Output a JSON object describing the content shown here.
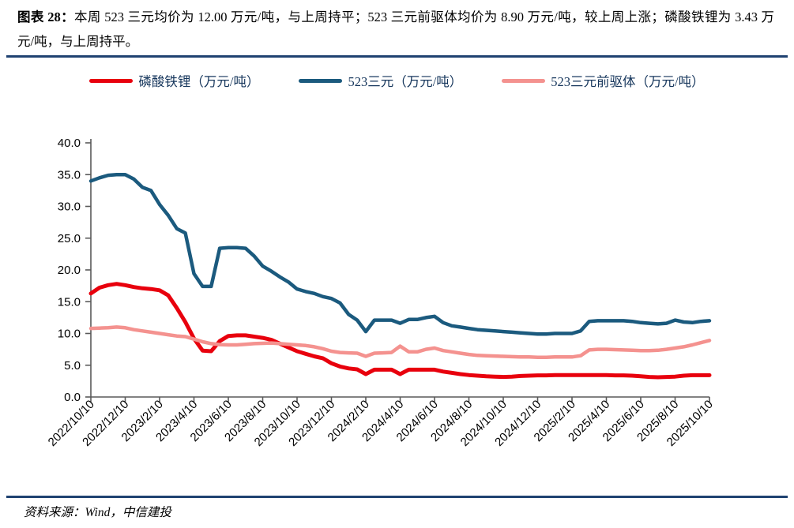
{
  "header": {
    "title_prefix": "图表 28：",
    "title_text": "本周 523 三元均价为 12.00 万元/吨，与上周持平；523 三元前驱体均价为 8.90 万元/吨，较上周上涨；磷酸铁锂为 3.43 万元/吨，与上周持平。"
  },
  "legend": [
    {
      "key": "lfp",
      "label": "磷酸铁锂（万元/吨）",
      "color": "#e8000d"
    },
    {
      "key": "ncm523",
      "label": "523三元（万元/吨）",
      "color": "#1b5a7e"
    },
    {
      "key": "ncm523-precursor",
      "label": "523三元前驱体（万元/吨）",
      "color": "#f4928f"
    }
  ],
  "chart_data": {
    "type": "line",
    "title": "",
    "xlabel": "",
    "ylabel": "",
    "ylim": [
      0,
      40
    ],
    "y_tick_labels": [
      "0.0",
      "5.0",
      "10.0",
      "15.0",
      "20.0",
      "25.0",
      "30.0",
      "35.0",
      "40.0"
    ],
    "grid": false,
    "legend_position": "top",
    "x_start": "2022/10/10",
    "x_end": "2025/10/10",
    "x_sampling": "semi-monthly, 73 evenly spaced points, tick every 4th point",
    "x_tick_labels": [
      "2022/10/10",
      "2022/12/10",
      "2023/2/10",
      "2023/4/10",
      "2023/6/10",
      "2023/8/10",
      "2023/10/10",
      "2023/12/10",
      "2024/2/10",
      "2024/4/10",
      "2024/6/10",
      "2024/8/10",
      "2024/10/10",
      "2024/12/10",
      "2025/2/10",
      "2025/4/10",
      "2025/6/10",
      "2025/8/10",
      "2025/10/10"
    ],
    "series": [
      {
        "key": "lfp",
        "name": "磷酸铁锂（万元/吨）",
        "color": "#e8000d",
        "values": [
          16.3,
          17.2,
          17.6,
          17.8,
          17.6,
          17.3,
          17.1,
          17.0,
          16.8,
          16.0,
          14.0,
          11.8,
          9.2,
          7.3,
          7.2,
          8.8,
          9.6,
          9.7,
          9.7,
          9.5,
          9.3,
          9.0,
          8.4,
          7.8,
          7.2,
          6.8,
          6.4,
          6.1,
          5.3,
          4.8,
          4.5,
          4.35,
          3.6,
          4.3,
          4.3,
          4.3,
          3.6,
          4.3,
          4.3,
          4.3,
          4.3,
          4.0,
          3.8,
          3.6,
          3.45,
          3.35,
          3.25,
          3.2,
          3.15,
          3.2,
          3.3,
          3.35,
          3.4,
          3.4,
          3.45,
          3.45,
          3.45,
          3.45,
          3.45,
          3.45,
          3.45,
          3.4,
          3.4,
          3.35,
          3.25,
          3.15,
          3.1,
          3.15,
          3.2,
          3.35,
          3.43,
          3.43,
          3.43
        ]
      },
      {
        "key": "ncm523",
        "name": "523三元（万元/吨）",
        "color": "#1b5a7e",
        "values": [
          34.0,
          34.5,
          34.9,
          35.0,
          35.0,
          34.3,
          33.0,
          32.5,
          30.3,
          28.6,
          26.5,
          25.8,
          19.4,
          17.4,
          17.4,
          23.4,
          23.5,
          23.5,
          23.4,
          22.2,
          20.6,
          19.8,
          18.9,
          18.1,
          17.0,
          16.6,
          16.3,
          15.8,
          15.5,
          14.8,
          13.0,
          12.1,
          10.3,
          12.1,
          12.1,
          12.1,
          11.6,
          12.2,
          12.2,
          12.5,
          12.7,
          11.7,
          11.2,
          11.0,
          10.8,
          10.6,
          10.5,
          10.4,
          10.3,
          10.2,
          10.1,
          10.0,
          9.9,
          9.9,
          10.0,
          10.0,
          10.0,
          10.4,
          11.9,
          12.0,
          12.0,
          12.0,
          12.0,
          11.9,
          11.7,
          11.6,
          11.5,
          11.6,
          12.1,
          11.8,
          11.7,
          11.9,
          12.0
        ]
      },
      {
        "key": "ncm523-precursor",
        "name": "523三元前驱体（万元/吨）",
        "color": "#f4928f",
        "values": [
          10.8,
          10.85,
          10.9,
          11.0,
          10.9,
          10.6,
          10.4,
          10.2,
          10.0,
          9.8,
          9.6,
          9.5,
          9.1,
          8.7,
          8.4,
          8.25,
          8.2,
          8.2,
          8.3,
          8.4,
          8.45,
          8.5,
          8.4,
          8.3,
          8.2,
          8.1,
          7.9,
          7.6,
          7.2,
          7.0,
          6.95,
          6.9,
          6.4,
          6.9,
          6.95,
          7.0,
          8.0,
          7.1,
          7.1,
          7.5,
          7.7,
          7.3,
          7.1,
          6.9,
          6.7,
          6.55,
          6.5,
          6.45,
          6.4,
          6.35,
          6.3,
          6.3,
          6.25,
          6.25,
          6.3,
          6.3,
          6.3,
          6.5,
          7.4,
          7.5,
          7.5,
          7.45,
          7.4,
          7.35,
          7.3,
          7.3,
          7.35,
          7.5,
          7.7,
          7.9,
          8.2,
          8.55,
          8.9
        ]
      }
    ],
    "latest_values": {
      "lfp": "3.43",
      "ncm523": "12.00",
      "ncm523_precursor": "8.90"
    }
  },
  "footer": {
    "source": "资料来源：Wind，中信建投"
  },
  "colors": {
    "rule": "#1f4271",
    "axis": "#595959",
    "text": "#000000",
    "legend_text": "#16365c"
  }
}
